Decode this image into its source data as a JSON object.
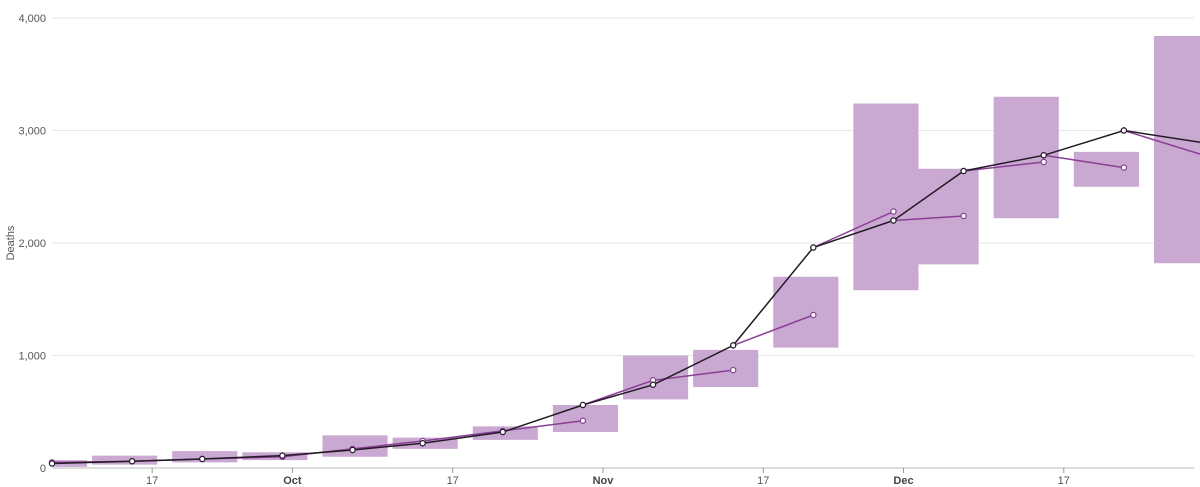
{
  "chart_data": {
    "type": "line",
    "ylabel": "Deaths",
    "ylim": [
      0,
      4000
    ],
    "y_ticks": [
      0,
      1000,
      2000,
      3000,
      4000
    ],
    "y_tick_labels": [
      "0",
      "1,000",
      "2,000",
      "3,000",
      "4,000"
    ],
    "xlim": [
      "2020-09-07",
      "2020-12-30"
    ],
    "x_ticks": [
      {
        "date": "2020-09-17",
        "label": "17",
        "bold": false
      },
      {
        "date": "2020-10-01",
        "label": "Oct",
        "bold": true
      },
      {
        "date": "2020-10-17",
        "label": "17",
        "bold": false
      },
      {
        "date": "2020-11-01",
        "label": "Nov",
        "bold": true
      },
      {
        "date": "2020-11-17",
        "label": "17",
        "bold": false
      },
      {
        "date": "2020-12-01",
        "label": "Dec",
        "bold": true
      },
      {
        "date": "2020-12-17",
        "label": "17",
        "bold": false
      }
    ],
    "grid": true,
    "colors": {
      "bands": "#c9a9d1",
      "forecast": "#8a3f96",
      "actual": "#231a24"
    },
    "bands": [
      {
        "x0": "2020-09-07",
        "x1": "2020-09-10",
        "low": 10,
        "high": 70
      },
      {
        "x0": "2020-09-11",
        "x1": "2020-09-17",
        "low": 30,
        "high": 110
      },
      {
        "x0": "2020-09-19",
        "x1": "2020-09-25",
        "low": 50,
        "high": 150
      },
      {
        "x0": "2020-09-26",
        "x1": "2020-10-02",
        "low": 70,
        "high": 140
      },
      {
        "x0": "2020-10-04",
        "x1": "2020-10-10",
        "low": 100,
        "high": 290
      },
      {
        "x0": "2020-10-11",
        "x1": "2020-10-17",
        "low": 170,
        "high": 270
      },
      {
        "x0": "2020-10-19",
        "x1": "2020-10-25",
        "low": 250,
        "high": 370
      },
      {
        "x0": "2020-10-27",
        "x1": "2020-11-02",
        "low": 320,
        "high": 560
      },
      {
        "x0": "2020-11-03",
        "x1": "2020-11-09",
        "low": 610,
        "high": 1000
      },
      {
        "x0": "2020-11-10",
        "x1": "2020-11-16",
        "low": 720,
        "high": 1050
      },
      {
        "x0": "2020-11-18",
        "x1": "2020-11-24",
        "low": 1070,
        "high": 1700
      },
      {
        "x0": "2020-11-26",
        "x1": "2020-12-02",
        "low": 1580,
        "high": 3240
      },
      {
        "x0": "2020-12-02",
        "x1": "2020-12-08",
        "low": 1810,
        "high": 2660
      },
      {
        "x0": "2020-12-10",
        "x1": "2020-12-16",
        "low": 2220,
        "high": 3300
      },
      {
        "x0": "2020-12-18",
        "x1": "2020-12-24",
        "low": 2500,
        "high": 2810
      },
      {
        "x0": "2020-12-26",
        "x1": "2020-12-31",
        "low": 1820,
        "high": 3840
      }
    ],
    "forecast_segments": [
      [
        {
          "x": "2020-09-07",
          "y": 50
        },
        {
          "x": "2020-09-15",
          "y": 60
        },
        {
          "x": "2020-09-22",
          "y": 80
        },
        {
          "x": "2020-09-30",
          "y": 100
        },
        {
          "x": "2020-10-07",
          "y": 170
        },
        {
          "x": "2020-10-14",
          "y": 240
        },
        {
          "x": "2020-10-22",
          "y": 330
        },
        {
          "x": "2020-10-30",
          "y": 420
        }
      ],
      [
        {
          "x": "2020-10-30",
          "y": 560
        },
        {
          "x": "2020-11-06",
          "y": 780
        },
        {
          "x": "2020-11-14",
          "y": 870
        }
      ],
      [
        {
          "x": "2020-11-14",
          "y": 1090
        },
        {
          "x": "2020-11-22",
          "y": 1360
        }
      ],
      [
        {
          "x": "2020-11-22",
          "y": 1960
        },
        {
          "x": "2020-11-30",
          "y": 2280
        }
      ],
      [
        {
          "x": "2020-11-30",
          "y": 2200
        },
        {
          "x": "2020-12-07",
          "y": 2240
        }
      ],
      [
        {
          "x": "2020-12-07",
          "y": 2640
        },
        {
          "x": "2020-12-15",
          "y": 2720
        }
      ],
      [
        {
          "x": "2020-12-15",
          "y": 2780
        },
        {
          "x": "2020-12-23",
          "y": 2670
        }
      ],
      [
        {
          "x": "2020-12-23",
          "y": 3000
        },
        {
          "x": "2020-12-31",
          "y": 2780
        }
      ]
    ],
    "actual": [
      {
        "x": "2020-09-07",
        "y": 40
      },
      {
        "x": "2020-09-15",
        "y": 60
      },
      {
        "x": "2020-09-22",
        "y": 80
      },
      {
        "x": "2020-09-30",
        "y": 110
      },
      {
        "x": "2020-10-07",
        "y": 160
      },
      {
        "x": "2020-10-14",
        "y": 220
      },
      {
        "x": "2020-10-22",
        "y": 320
      },
      {
        "x": "2020-10-30",
        "y": 560
      },
      {
        "x": "2020-11-06",
        "y": 740
      },
      {
        "x": "2020-11-14",
        "y": 1090
      },
      {
        "x": "2020-11-22",
        "y": 1960
      },
      {
        "x": "2020-11-30",
        "y": 2200
      },
      {
        "x": "2020-12-07",
        "y": 2640
      },
      {
        "x": "2020-12-15",
        "y": 2780
      },
      {
        "x": "2020-12-23",
        "y": 3000
      },
      {
        "x": "2020-12-31",
        "y": 2890
      }
    ]
  }
}
